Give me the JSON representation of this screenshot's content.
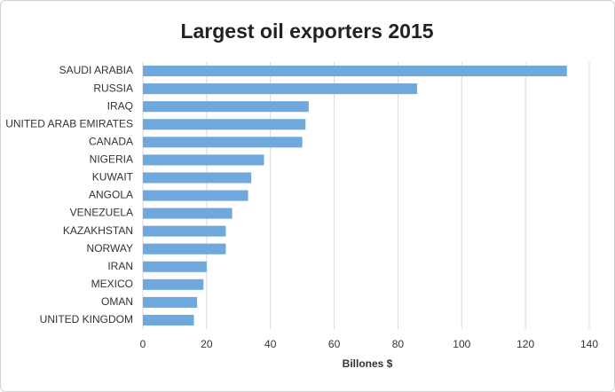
{
  "chart_data": {
    "type": "hbar",
    "title": "Largest oil exporters 2015",
    "categories": [
      "SAUDI ARABIA",
      "RUSSIA",
      "IRAQ",
      "UNITED ARAB EMIRATES",
      "CANADA",
      "NIGERIA",
      "KUWAIT",
      "ANGOLA",
      "VENEZUELA",
      "KAZAKHSTAN",
      "NORWAY",
      "IRAN",
      "MEXICO",
      "OMAN",
      "UNITED KINGDOM"
    ],
    "values": [
      133,
      86,
      52,
      51,
      50,
      38,
      34,
      33,
      28,
      26,
      26,
      20,
      19,
      17,
      16
    ],
    "color": "#6fa8dc",
    "x_label": "Billones $",
    "xlim": [
      0,
      140
    ],
    "xticks": [
      0,
      20,
      40,
      60,
      80,
      100,
      120,
      140
    ],
    "grid": true
  }
}
